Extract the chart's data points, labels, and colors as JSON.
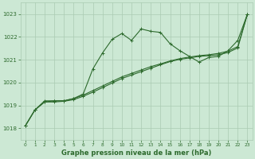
{
  "title": "Graphe pression niveau de la mer (hPa)",
  "background_color": "#cce8d4",
  "grid_color": "#aacbb2",
  "line_color": "#2d6a2d",
  "xlim": [
    -0.5,
    23.5
  ],
  "ylim": [
    1017.5,
    1023.5
  ],
  "xticks": [
    0,
    1,
    2,
    3,
    4,
    5,
    6,
    7,
    8,
    9,
    10,
    11,
    12,
    13,
    14,
    15,
    16,
    17,
    18,
    19,
    20,
    21,
    22,
    23
  ],
  "yticks": [
    1018,
    1019,
    1020,
    1021,
    1022,
    1023
  ],
  "series1_x": [
    0,
    1,
    2,
    3,
    4,
    5,
    6,
    7,
    8,
    9,
    10,
    11,
    12,
    13,
    14,
    15,
    16,
    17,
    18,
    19,
    20,
    21,
    22,
    23
  ],
  "series1_y": [
    1018.1,
    1018.8,
    1019.2,
    1019.2,
    1019.2,
    1019.3,
    1019.5,
    1020.6,
    1021.3,
    1021.9,
    1022.15,
    1021.85,
    1022.35,
    1022.25,
    1022.2,
    1021.7,
    1021.4,
    1021.15,
    1020.9,
    1021.1,
    1021.15,
    1021.4,
    1021.85,
    1023.0
  ],
  "series2_x": [
    0,
    1,
    2,
    3,
    4,
    5,
    6,
    7,
    8,
    9,
    10,
    11,
    12,
    13,
    14,
    15,
    16,
    17,
    18,
    19,
    20,
    21,
    22,
    23
  ],
  "series2_y": [
    1018.1,
    1018.8,
    1019.15,
    1019.2,
    1019.2,
    1019.3,
    1019.45,
    1019.65,
    1019.85,
    1020.05,
    1020.25,
    1020.4,
    1020.55,
    1020.7,
    1020.82,
    1020.95,
    1021.05,
    1021.12,
    1021.18,
    1021.22,
    1021.28,
    1021.38,
    1021.58,
    1023.0
  ],
  "series3_x": [
    0,
    1,
    2,
    3,
    4,
    5,
    6,
    7,
    8,
    9,
    10,
    11,
    12,
    13,
    14,
    15,
    16,
    17,
    18,
    19,
    20,
    21,
    22,
    23
  ],
  "series3_y": [
    1018.1,
    1018.8,
    1019.15,
    1019.15,
    1019.18,
    1019.25,
    1019.4,
    1019.58,
    1019.78,
    1019.98,
    1020.18,
    1020.33,
    1020.48,
    1020.63,
    1020.78,
    1020.92,
    1021.02,
    1021.08,
    1021.15,
    1021.18,
    1021.22,
    1021.32,
    1021.52,
    1023.0
  ]
}
